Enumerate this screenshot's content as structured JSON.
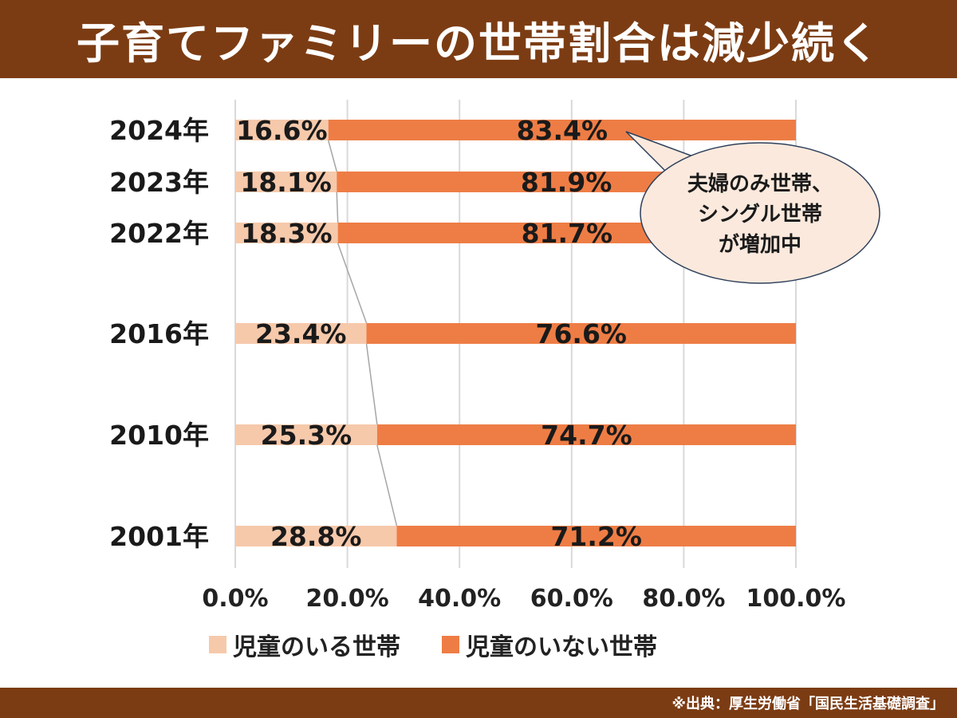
{
  "title": "子育てファミリーの世帯割合は減少続く",
  "source": "※出典：厚生労働省「国民生活基礎調査」",
  "callout": [
    "夫婦のみ世帯、",
    "シングル世帯",
    "が増加中"
  ],
  "colors": {
    "header": "#7c3c13",
    "with_children": "#f6c9ab",
    "without_children": "#ee7d45",
    "grid": "#d9d9d9",
    "callout_fill": "#fbe9dd",
    "callout_stroke": "#2d3f5a"
  },
  "chart_data": {
    "type": "bar",
    "orientation": "horizontal-stacked-100",
    "categories": [
      "2024年",
      "2023年",
      "2022年",
      "2016年",
      "2010年",
      "2001年"
    ],
    "series": [
      {
        "name": "児童のいる世帯",
        "values": [
          16.6,
          18.1,
          18.3,
          23.4,
          25.3,
          28.8
        ],
        "labels": [
          "16.6%",
          "18.1%",
          "18.3%",
          "23.4%",
          "25.3%",
          "28.8%"
        ]
      },
      {
        "name": "児童のいない世帯",
        "values": [
          83.4,
          81.9,
          81.7,
          76.6,
          74.7,
          71.2
        ],
        "labels": [
          "83.4%",
          "81.9%",
          "81.7%",
          "76.6%",
          "74.7%",
          "71.2%"
        ]
      }
    ],
    "xlim": [
      0,
      100
    ],
    "xticks": [
      "0.0%",
      "20.0%",
      "40.0%",
      "60.0%",
      "80.0%",
      "100.0%"
    ],
    "grid": true,
    "legend": "bottom"
  }
}
